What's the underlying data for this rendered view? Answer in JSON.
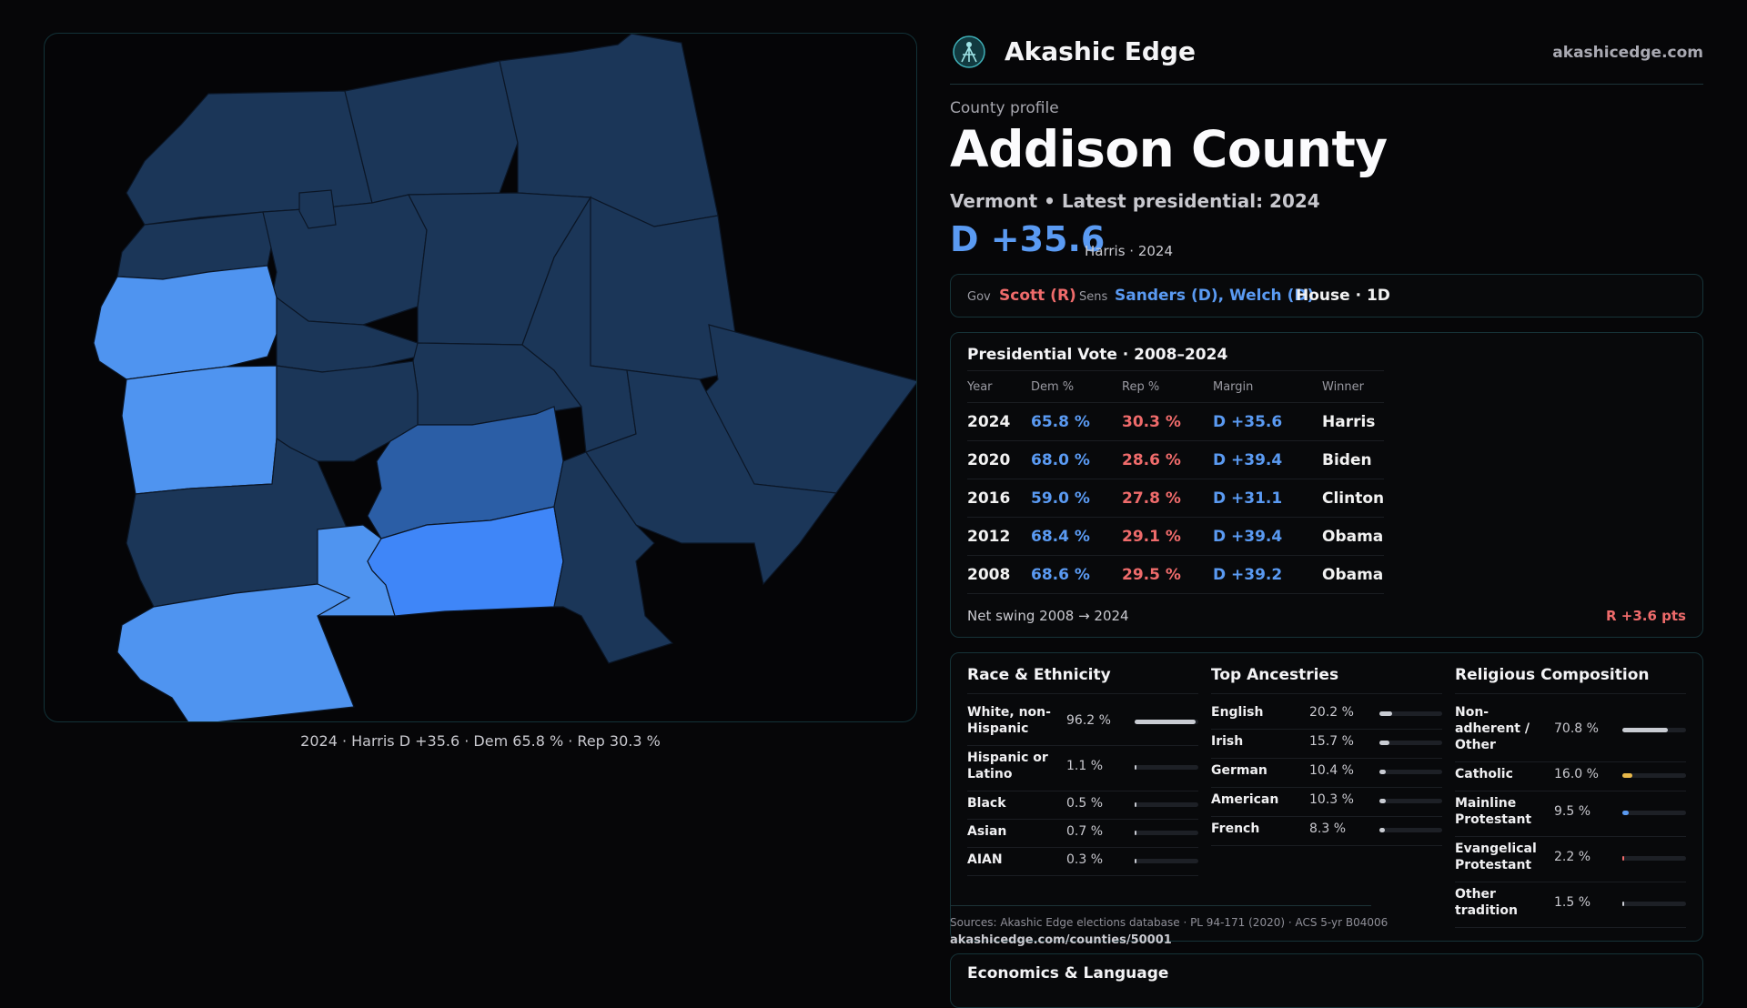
{
  "brand": {
    "name": "Akashic Edge",
    "url": "akashicedge.com"
  },
  "profile": {
    "eyebrow": "County profile",
    "title": "Addison County",
    "subtitle": "Vermont • Latest presidential: 2024",
    "margin": "D +35.6",
    "margin_note": "Harris · 2024"
  },
  "officials": {
    "gov_label": "Gov",
    "gov": "Scott (R)",
    "sens_label": "Sens",
    "sens": "Sanders (D), Welch (D)",
    "house": "House · 1D"
  },
  "map": {
    "caption": "2024 · Harris D +35.6 · Dem 65.8 % · Rep 30.3 %",
    "colors": {
      "safe_d": "#1b3658",
      "likely_d": "#2b5ea6",
      "lean_d": "#4f94f0",
      "strong_d": "#3f86f8"
    }
  },
  "presidential": {
    "title": "Presidential Vote · 2008–2024",
    "headers": [
      "Year",
      "Dem %",
      "Rep %",
      "Margin",
      "Winner"
    ],
    "rows": [
      {
        "year": "2024",
        "dem": "65.8 %",
        "rep": "30.3 %",
        "margin": "D +35.6",
        "winner": "Harris"
      },
      {
        "year": "2020",
        "dem": "68.0 %",
        "rep": "28.6 %",
        "margin": "D +39.4",
        "winner": "Biden"
      },
      {
        "year": "2016",
        "dem": "59.0 %",
        "rep": "27.8 %",
        "margin": "D +31.1",
        "winner": "Clinton"
      },
      {
        "year": "2012",
        "dem": "68.4 %",
        "rep": "29.1 %",
        "margin": "D +39.4",
        "winner": "Obama"
      },
      {
        "year": "2008",
        "dem": "68.6 %",
        "rep": "29.5 %",
        "margin": "D +39.2",
        "winner": "Obama"
      }
    ],
    "swing_label": "Net swing 2008 → 2024",
    "swing_value": "R +3.6 pts"
  },
  "race": {
    "title": "Race & Ethnicity",
    "bar_color": "#c9ccd3",
    "items": [
      {
        "label": "White, non-Hispanic",
        "value": "96.2 %",
        "pct": 96.2
      },
      {
        "label": "Hispanic or Latino",
        "value": "1.1 %",
        "pct": 1.1
      },
      {
        "label": "Black",
        "value": "0.5 %",
        "pct": 0.5
      },
      {
        "label": "Asian",
        "value": "0.7 %",
        "pct": 0.7
      },
      {
        "label": "AIAN",
        "value": "0.3 %",
        "pct": 0.3
      }
    ]
  },
  "ancestry": {
    "title": "Top Ancestries",
    "bar_color": "#c9ccd3",
    "items": [
      {
        "label": "English",
        "value": "20.2 %",
        "pct": 20.2
      },
      {
        "label": "Irish",
        "value": "15.7 %",
        "pct": 15.7
      },
      {
        "label": "German",
        "value": "10.4 %",
        "pct": 10.4
      },
      {
        "label": "American",
        "value": "10.3 %",
        "pct": 10.3
      },
      {
        "label": "French",
        "value": "8.3 %",
        "pct": 8.3
      }
    ]
  },
  "religion": {
    "title": "Religious Composition",
    "items": [
      {
        "label": "Non-adherent / Other",
        "value": "70.8 %",
        "pct": 70.8,
        "color": "#c9ccd3"
      },
      {
        "label": "Catholic",
        "value": "16.0 %",
        "pct": 16.0,
        "color": "#e8b84a"
      },
      {
        "label": "Mainline Protestant",
        "value": "9.5 %",
        "pct": 9.5,
        "color": "#5a9af2"
      },
      {
        "label": "Evangelical Protestant",
        "value": "2.2 %",
        "pct": 2.2,
        "color": "#ef6b6b"
      },
      {
        "label": "Other tradition",
        "value": "1.5 %",
        "pct": 1.5,
        "color": "#c9ccd3"
      }
    ]
  },
  "sources": {
    "text": "Sources: Akashic Edge elections database · PL 94-171 (2020) · ACS 5-yr B04006",
    "url": "akashicedge.com/counties/50001"
  },
  "economics": {
    "title": "Economics & Language"
  }
}
